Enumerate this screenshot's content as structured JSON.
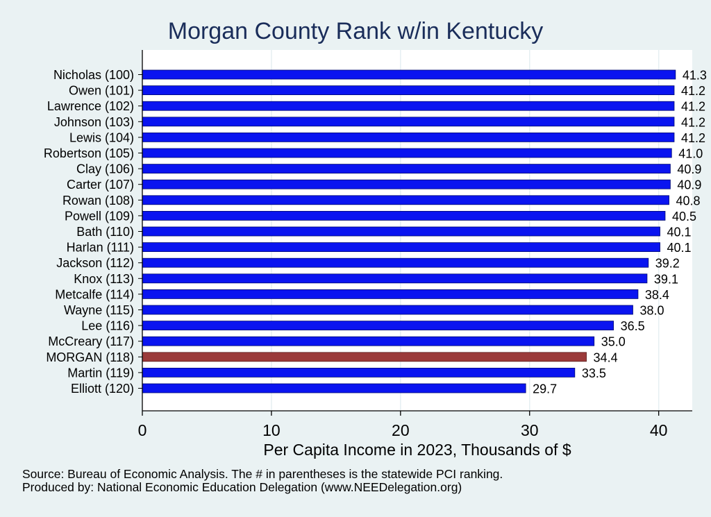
{
  "chart_data": {
    "type": "bar",
    "orientation": "horizontal",
    "title": "Morgan County Rank w/in Kentucky",
    "xlabel": "Per Capita Income in 2023, Thousands of $",
    "xlim": [
      0,
      42.6
    ],
    "xticks": [
      0,
      10,
      20,
      30,
      40
    ],
    "grid": true,
    "categories": [
      "Nicholas (100)",
      "Owen (101)",
      "Lawrence (102)",
      "Johnson (103)",
      "Lewis (104)",
      "Robertson (105)",
      "Clay (106)",
      "Carter (107)",
      "Rowan (108)",
      "Powell (109)",
      "Bath (110)",
      "Harlan (111)",
      "Jackson (112)",
      "Knox (113)",
      "Metcalfe (114)",
      "Wayne (115)",
      "Lee (116)",
      "McCreary (117)",
      "MORGAN (118)",
      "Martin (119)",
      "Elliott (120)"
    ],
    "values": [
      41.3,
      41.2,
      41.2,
      41.2,
      41.2,
      41.0,
      40.9,
      40.9,
      40.8,
      40.5,
      40.1,
      40.1,
      39.2,
      39.1,
      38.4,
      38.0,
      36.5,
      35.0,
      34.4,
      33.5,
      29.7
    ],
    "value_labels": [
      "41.3",
      "41.2",
      "41.2",
      "41.2",
      "41.2",
      "41.0",
      "40.9",
      "40.9",
      "40.8",
      "40.5",
      "40.1",
      "40.1",
      "39.2",
      "39.1",
      "38.4",
      "38.0",
      "36.5",
      "35.0",
      "34.4",
      "33.5",
      "29.7"
    ],
    "highlight_index": 18,
    "colors": {
      "bar": "#0a14f0",
      "highlight": "#9b3a3a",
      "background": "#eaf2f3",
      "plot_background": "#ffffff",
      "grid": "#e6eff2",
      "title": "#1a2d5a"
    }
  },
  "notes": {
    "source": "Source: Bureau of Economic Analysis. The # in parentheses is the statewide PCI ranking.",
    "produced": "Produced by: National Economic Education Delegation (www.NEEDelegation.org)"
  }
}
